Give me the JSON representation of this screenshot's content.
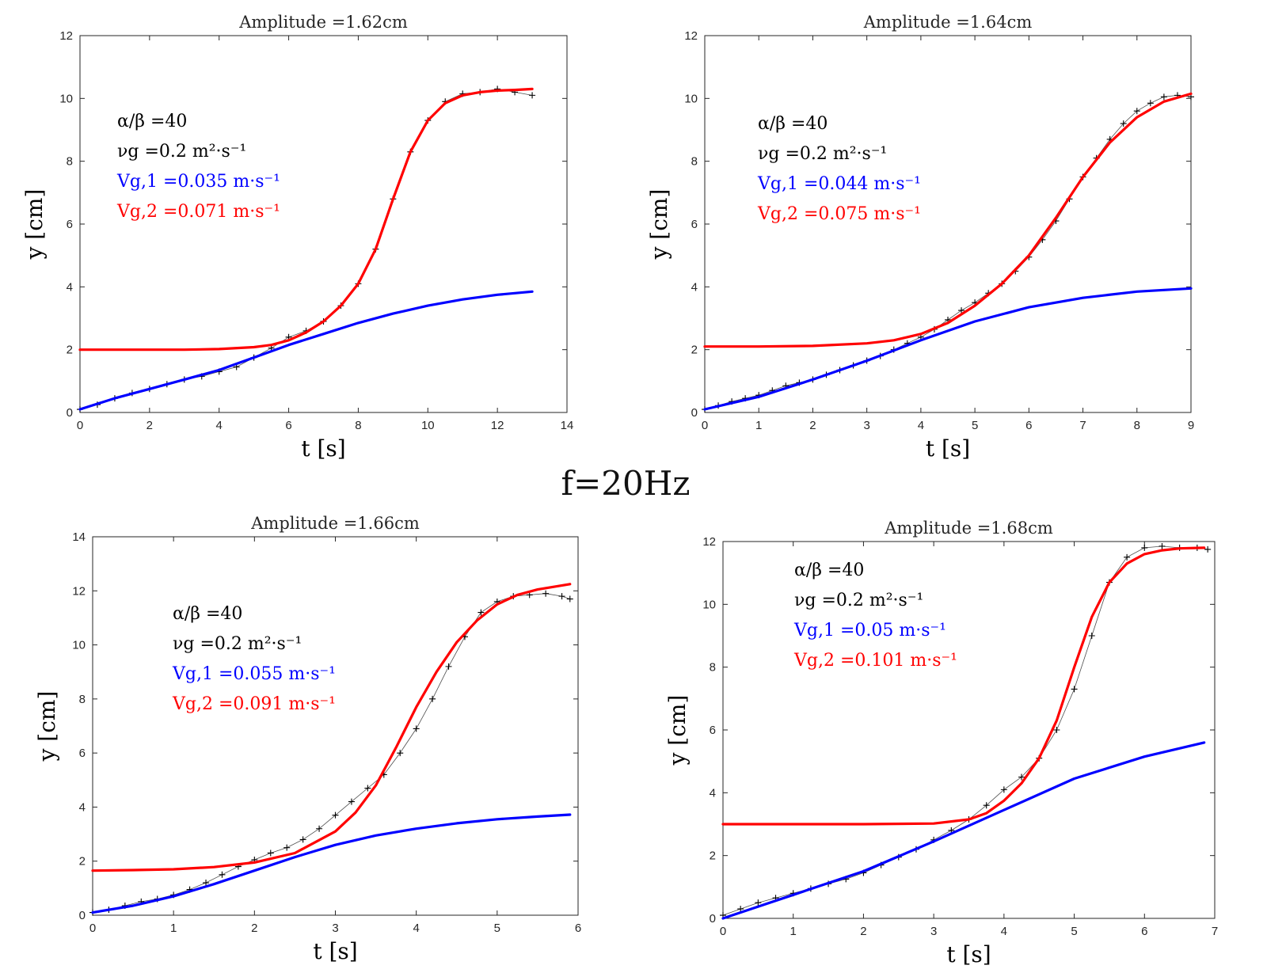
{
  "figure_label": "f=20Hz",
  "colors": {
    "data": "#000000",
    "fit1": "#0000ff",
    "fit2": "#ff0000",
    "axis": "#262626"
  },
  "chart_data": [
    {
      "type": "line",
      "title": "Amplitude =1.62cm",
      "xlabel": "t [s]",
      "ylabel": "y [cm]",
      "xlim": [
        0,
        14
      ],
      "ylim": [
        0,
        12
      ],
      "xticks": [
        "0",
        "2",
        "4",
        "6",
        "8",
        "10",
        "12",
        "14"
      ],
      "yticks": [
        "0",
        "2",
        "4",
        "6",
        "8",
        "10",
        "12"
      ],
      "grid": false,
      "annotations": [
        {
          "text": "α/β =40",
          "color": "#000000"
        },
        {
          "text": "νg =0.2 m²·s⁻¹",
          "color": "#000000"
        },
        {
          "text": "Vg,1 =0.035 m·s⁻¹",
          "color": "#0000ff"
        },
        {
          "text": "Vg,2 =0.071 m·s⁻¹",
          "color": "#ff0000"
        }
      ],
      "series": [
        {
          "style": "markers",
          "color": "#000000",
          "x": [
            0,
            0.5,
            1,
            1.5,
            2,
            2.5,
            3,
            3.5,
            4,
            4.5,
            5,
            5.5,
            6,
            6.5,
            7,
            7.5,
            8,
            8.5,
            9,
            9.5,
            10,
            10.5,
            11,
            11.5,
            12,
            12.5,
            13
          ],
          "y": [
            0.1,
            0.25,
            0.45,
            0.62,
            0.75,
            0.9,
            1.05,
            1.15,
            1.3,
            1.45,
            1.75,
            2.05,
            2.4,
            2.6,
            2.9,
            3.4,
            4.1,
            5.2,
            6.8,
            8.3,
            9.3,
            9.9,
            10.15,
            10.2,
            10.3,
            10.2,
            10.1
          ]
        },
        {
          "style": "line",
          "color": "#0000ff",
          "x": [
            0,
            1,
            2,
            3,
            4,
            5,
            6,
            7,
            8,
            9,
            10,
            11,
            12,
            13
          ],
          "y": [
            0.1,
            0.45,
            0.75,
            1.05,
            1.35,
            1.75,
            2.15,
            2.5,
            2.85,
            3.15,
            3.4,
            3.6,
            3.75,
            3.85
          ]
        },
        {
          "style": "line",
          "color": "#ff0000",
          "x": [
            0,
            1,
            2,
            3,
            4,
            5,
            5.5,
            6,
            6.5,
            7,
            7.5,
            8,
            8.5,
            9,
            9.5,
            10,
            10.5,
            11,
            11.5,
            12,
            12.5,
            13
          ],
          "y": [
            2.0,
            2.0,
            2.0,
            2.0,
            2.02,
            2.08,
            2.15,
            2.3,
            2.55,
            2.9,
            3.4,
            4.1,
            5.2,
            6.8,
            8.3,
            9.3,
            9.85,
            10.1,
            10.2,
            10.25,
            10.27,
            10.3
          ]
        }
      ]
    },
    {
      "type": "line",
      "title": "Amplitude =1.64cm",
      "xlabel": "t [s]",
      "ylabel": "y [cm]",
      "xlim": [
        0,
        9
      ],
      "ylim": [
        0,
        12
      ],
      "xticks": [
        "0",
        "1",
        "2",
        "3",
        "4",
        "5",
        "6",
        "7",
        "8",
        "9"
      ],
      "yticks": [
        "0",
        "2",
        "4",
        "6",
        "8",
        "10",
        "12"
      ],
      "grid": false,
      "annotations": [
        {
          "text": "α/β =40",
          "color": "#000000"
        },
        {
          "text": "νg =0.2 m²·s⁻¹",
          "color": "#000000"
        },
        {
          "text": "Vg,1 =0.044 m·s⁻¹",
          "color": "#0000ff"
        },
        {
          "text": "Vg,2 =0.075 m·s⁻¹",
          "color": "#ff0000"
        }
      ],
      "series": [
        {
          "style": "markers",
          "color": "#000000",
          "x": [
            0,
            0.25,
            0.5,
            0.75,
            1,
            1.25,
            1.5,
            1.75,
            2,
            2.25,
            2.5,
            2.75,
            3,
            3.25,
            3.5,
            3.75,
            4,
            4.25,
            4.5,
            4.75,
            5,
            5.25,
            5.5,
            5.75,
            6,
            6.25,
            6.5,
            6.75,
            7,
            7.25,
            7.5,
            7.75,
            8,
            8.25,
            8.5,
            8.75,
            9
          ],
          "y": [
            0.1,
            0.22,
            0.35,
            0.45,
            0.55,
            0.7,
            0.85,
            0.95,
            1.05,
            1.2,
            1.35,
            1.5,
            1.65,
            1.8,
            2.0,
            2.2,
            2.4,
            2.65,
            2.95,
            3.25,
            3.5,
            3.8,
            4.1,
            4.5,
            4.95,
            5.5,
            6.1,
            6.8,
            7.5,
            8.1,
            8.7,
            9.2,
            9.6,
            9.85,
            10.05,
            10.1,
            10.05
          ]
        },
        {
          "style": "line",
          "color": "#0000ff",
          "x": [
            0,
            1,
            2,
            3,
            4,
            5,
            6,
            7,
            8,
            9
          ],
          "y": [
            0.1,
            0.5,
            1.05,
            1.65,
            2.3,
            2.9,
            3.35,
            3.65,
            3.85,
            3.95
          ]
        },
        {
          "style": "line",
          "color": "#ff0000",
          "x": [
            0,
            1,
            2,
            3,
            3.5,
            4,
            4.5,
            5,
            5.5,
            6,
            6.5,
            7,
            7.5,
            8,
            8.5,
            9
          ],
          "y": [
            2.1,
            2.1,
            2.12,
            2.2,
            2.3,
            2.5,
            2.85,
            3.4,
            4.1,
            5.0,
            6.2,
            7.5,
            8.6,
            9.4,
            9.9,
            10.15
          ]
        }
      ]
    },
    {
      "type": "line",
      "title": "Amplitude =1.66cm",
      "xlabel": "t [s]",
      "ylabel": "y [cm]",
      "xlim": [
        0,
        6
      ],
      "ylim": [
        0,
        14
      ],
      "xticks": [
        "0",
        "1",
        "2",
        "3",
        "4",
        "5",
        "6"
      ],
      "yticks": [
        "0",
        "2",
        "4",
        "6",
        "8",
        "10",
        "12",
        "14"
      ],
      "grid": false,
      "annotations": [
        {
          "text": "α/β =40",
          "color": "#000000"
        },
        {
          "text": "νg =0.2 m²·s⁻¹",
          "color": "#000000"
        },
        {
          "text": "Vg,1 =0.055 m·s⁻¹",
          "color": "#0000ff"
        },
        {
          "text": "Vg,2 =0.091 m·s⁻¹",
          "color": "#ff0000"
        }
      ],
      "series": [
        {
          "style": "markers",
          "color": "#000000",
          "x": [
            0,
            0.2,
            0.4,
            0.6,
            0.8,
            1,
            1.2,
            1.4,
            1.6,
            1.8,
            2,
            2.2,
            2.4,
            2.6,
            2.8,
            3,
            3.2,
            3.4,
            3.6,
            3.8,
            4,
            4.2,
            4.4,
            4.6,
            4.8,
            5,
            5.2,
            5.4,
            5.6,
            5.8,
            5.9
          ],
          "y": [
            0.1,
            0.2,
            0.35,
            0.5,
            0.6,
            0.75,
            0.95,
            1.2,
            1.5,
            1.8,
            2.05,
            2.3,
            2.5,
            2.8,
            3.2,
            3.7,
            4.2,
            4.7,
            5.2,
            6.0,
            6.9,
            8.0,
            9.2,
            10.3,
            11.2,
            11.6,
            11.8,
            11.85,
            11.9,
            11.8,
            11.7
          ]
        },
        {
          "style": "line",
          "color": "#0000ff",
          "x": [
            0,
            0.5,
            1,
            1.5,
            2,
            2.5,
            3,
            3.5,
            4,
            4.5,
            5,
            5.5,
            5.9
          ],
          "y": [
            0.1,
            0.35,
            0.7,
            1.15,
            1.65,
            2.15,
            2.6,
            2.95,
            3.2,
            3.4,
            3.55,
            3.65,
            3.72
          ]
        },
        {
          "style": "line",
          "color": "#ff0000",
          "x": [
            0,
            0.5,
            1,
            1.5,
            2,
            2.5,
            3,
            3.25,
            3.5,
            3.75,
            4,
            4.25,
            4.5,
            4.75,
            5,
            5.25,
            5.5,
            5.9
          ],
          "y": [
            1.65,
            1.67,
            1.7,
            1.78,
            1.95,
            2.3,
            3.1,
            3.8,
            4.8,
            6.2,
            7.7,
            9.0,
            10.1,
            10.9,
            11.5,
            11.85,
            12.05,
            12.25
          ]
        }
      ]
    },
    {
      "type": "line",
      "title": "Amplitude =1.68cm",
      "xlabel": "t [s]",
      "ylabel": "y [cm]",
      "xlim": [
        0,
        7
      ],
      "ylim": [
        0,
        12
      ],
      "xticks": [
        "0",
        "1",
        "2",
        "3",
        "4",
        "5",
        "6",
        "7"
      ],
      "yticks": [
        "0",
        "2",
        "4",
        "6",
        "8",
        "10",
        "12"
      ],
      "grid": false,
      "annotations": [
        {
          "text": "α/β =40",
          "color": "#000000"
        },
        {
          "text": "νg =0.2 m²·s⁻¹",
          "color": "#000000"
        },
        {
          "text": "Vg,1 =0.05 m·s⁻¹",
          "color": "#0000ff"
        },
        {
          "text": "Vg,2 =0.101 m·s⁻¹",
          "color": "#ff0000"
        }
      ],
      "series": [
        {
          "style": "markers",
          "color": "#000000",
          "x": [
            0,
            0.25,
            0.5,
            0.75,
            1,
            1.25,
            1.5,
            1.75,
            2,
            2.25,
            2.5,
            2.75,
            3,
            3.25,
            3.5,
            3.75,
            4,
            4.25,
            4.5,
            4.75,
            5,
            5.25,
            5.5,
            5.75,
            6,
            6.25,
            6.5,
            6.75,
            6.9
          ],
          "y": [
            0.1,
            0.3,
            0.5,
            0.65,
            0.8,
            0.95,
            1.1,
            1.25,
            1.45,
            1.7,
            1.95,
            2.2,
            2.5,
            2.8,
            3.15,
            3.6,
            4.1,
            4.5,
            5.1,
            6.0,
            7.3,
            9.0,
            10.7,
            11.5,
            11.8,
            11.85,
            11.8,
            11.8,
            11.75
          ]
        },
        {
          "style": "line",
          "color": "#0000ff",
          "x": [
            0,
            1,
            2,
            3,
            4,
            5,
            6,
            6.85
          ],
          "y": [
            0.0,
            0.75,
            1.5,
            2.45,
            3.45,
            4.45,
            5.15,
            5.6
          ]
        },
        {
          "style": "line",
          "color": "#ff0000",
          "x": [
            0,
            1,
            2,
            3,
            3.5,
            3.75,
            4,
            4.25,
            4.5,
            4.75,
            5,
            5.25,
            5.5,
            5.75,
            6,
            6.25,
            6.5,
            6.85
          ],
          "y": [
            3.0,
            3.0,
            3.0,
            3.02,
            3.15,
            3.35,
            3.75,
            4.3,
            5.1,
            6.3,
            8.0,
            9.6,
            10.7,
            11.3,
            11.6,
            11.72,
            11.78,
            11.8
          ]
        }
      ]
    }
  ]
}
